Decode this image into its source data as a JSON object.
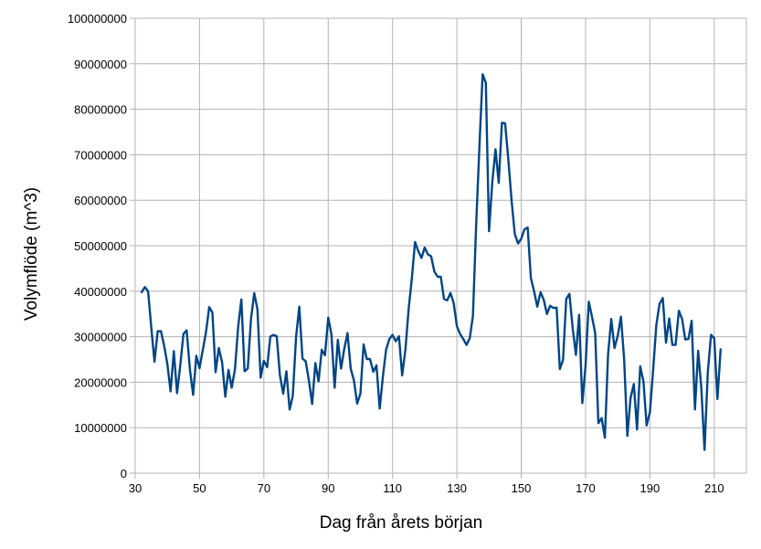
{
  "chart_data": {
    "type": "line",
    "title": "",
    "xlabel": "Dag från årets början",
    "ylabel": "Volymflöde (m^3)",
    "xlim": [
      30,
      220
    ],
    "ylim": [
      0,
      100000000
    ],
    "x_ticks": [
      30,
      50,
      70,
      90,
      110,
      130,
      150,
      170,
      190,
      210
    ],
    "x_tick_labels": [
      "30",
      "50",
      "70",
      "90",
      "110",
      "130",
      "150",
      "170",
      "190",
      "210"
    ],
    "y_ticks": [
      0,
      10000000,
      20000000,
      30000000,
      40000000,
      50000000,
      60000000,
      70000000,
      80000000,
      90000000,
      100000000
    ],
    "y_tick_labels": [
      "0",
      "10000000",
      "20000000",
      "30000000",
      "40000000",
      "50000000",
      "60000000",
      "70000000",
      "80000000",
      "90000000",
      "100000000"
    ],
    "grid": true,
    "legend": "none",
    "colors": {
      "line": "#004586",
      "grid": "#b3b3b3",
      "axis": "#b3b3b3"
    },
    "series": [
      {
        "x": [
          32,
          33,
          34,
          35,
          36,
          37,
          38,
          39,
          40,
          41,
          42,
          43,
          44,
          45,
          46,
          47,
          48,
          49,
          50,
          51,
          52,
          53,
          54,
          55,
          56,
          57,
          58,
          59,
          60,
          61,
          62,
          63,
          64,
          65,
          66,
          67,
          68,
          69,
          70,
          71,
          72,
          73,
          74,
          75,
          76,
          77,
          78,
          79,
          80,
          81,
          82,
          83,
          84,
          85,
          86,
          87,
          88,
          89,
          90,
          91,
          92,
          93,
          94,
          95,
          96,
          97,
          98,
          99,
          100,
          101,
          102,
          103,
          104,
          105,
          106,
          107,
          108,
          109,
          110,
          111,
          112,
          113,
          114,
          115,
          116,
          117,
          118,
          119,
          120,
          121,
          122,
          123,
          124,
          125,
          126,
          127,
          128,
          129,
          130,
          131,
          132,
          133,
          134,
          135,
          136,
          137,
          138,
          139,
          140,
          141,
          142,
          143,
          144,
          145,
          146,
          147,
          148,
          149,
          150,
          151,
          152,
          153,
          154,
          155,
          156,
          157,
          158,
          159,
          160,
          161,
          162,
          163,
          164,
          165,
          166,
          167,
          168,
          169,
          170,
          171,
          172,
          173,
          174,
          175,
          176,
          177,
          178,
          179,
          180,
          181,
          182,
          183,
          184,
          185,
          186,
          187,
          188,
          189,
          190,
          191,
          192,
          193,
          194,
          195,
          196,
          197,
          198,
          199,
          200,
          201,
          202,
          203,
          204,
          205,
          206,
          207,
          208,
          209,
          210,
          211,
          212
        ],
        "y": [
          39800000,
          40900000,
          40000000,
          32000000,
          24500000,
          31200000,
          31200000,
          28000000,
          24000000,
          18000000,
          26800000,
          17600000,
          23700000,
          30600000,
          31400000,
          22800000,
          17200000,
          25800000,
          23100000,
          27000000,
          31000000,
          36500000,
          35300000,
          22200000,
          27500000,
          24400000,
          16800000,
          22700000,
          18800000,
          22900000,
          32200000,
          38200000,
          22400000,
          23000000,
          34000000,
          39600000,
          36000000,
          21000000,
          24700000,
          23300000,
          30000000,
          30400000,
          30100000,
          21500000,
          17500000,
          22400000,
          14000000,
          17000000,
          30000000,
          36600000,
          25200000,
          24600000,
          20400000,
          15200000,
          24200000,
          20200000,
          27100000,
          25900000,
          34200000,
          30500000,
          18800000,
          29300000,
          23000000,
          27400000,
          30800000,
          23000000,
          20400000,
          15300000,
          17500000,
          28300000,
          25100000,
          25100000,
          22300000,
          23700000,
          14200000,
          21200000,
          27100000,
          29500000,
          30400000,
          29000000,
          30100000,
          21500000,
          27200000,
          36100000,
          42800000,
          50800000,
          48800000,
          47300000,
          49600000,
          48100000,
          47700000,
          44300000,
          43200000,
          43200000,
          38300000,
          38000000,
          39600000,
          37400000,
          32300000,
          30600000,
          29500000,
          28200000,
          29700000,
          34600000,
          54600000,
          71900000,
          87700000,
          85800000,
          53200000,
          63800000,
          71200000,
          63800000,
          77000000,
          76900000,
          69000000,
          59900000,
          52600000,
          50500000,
          51500000,
          53600000,
          54000000,
          42900000,
          40000000,
          36600000,
          39800000,
          38100000,
          35000000,
          36800000,
          36300000,
          36400000,
          22900000,
          24900000,
          38300000,
          39400000,
          31800000,
          26000000,
          34800000,
          15400000,
          23500000,
          37700000,
          34400000,
          30800000,
          11000000,
          12100000,
          7800000,
          26100000,
          33900000,
          27500000,
          30200000,
          34400000,
          25000000,
          8200000,
          16500000,
          19600000,
          9600000,
          23500000,
          20200000,
          10500000,
          13400000,
          22600000,
          32500000,
          37200000,
          38500000,
          28700000,
          34000000,
          28200000,
          28200000,
          35700000,
          33900000,
          29400000,
          29500000,
          33500000,
          14000000,
          26900000,
          18600000,
          5100000,
          22000000,
          30400000,
          29700000,
          16300000,
          27200000
        ]
      }
    ]
  }
}
